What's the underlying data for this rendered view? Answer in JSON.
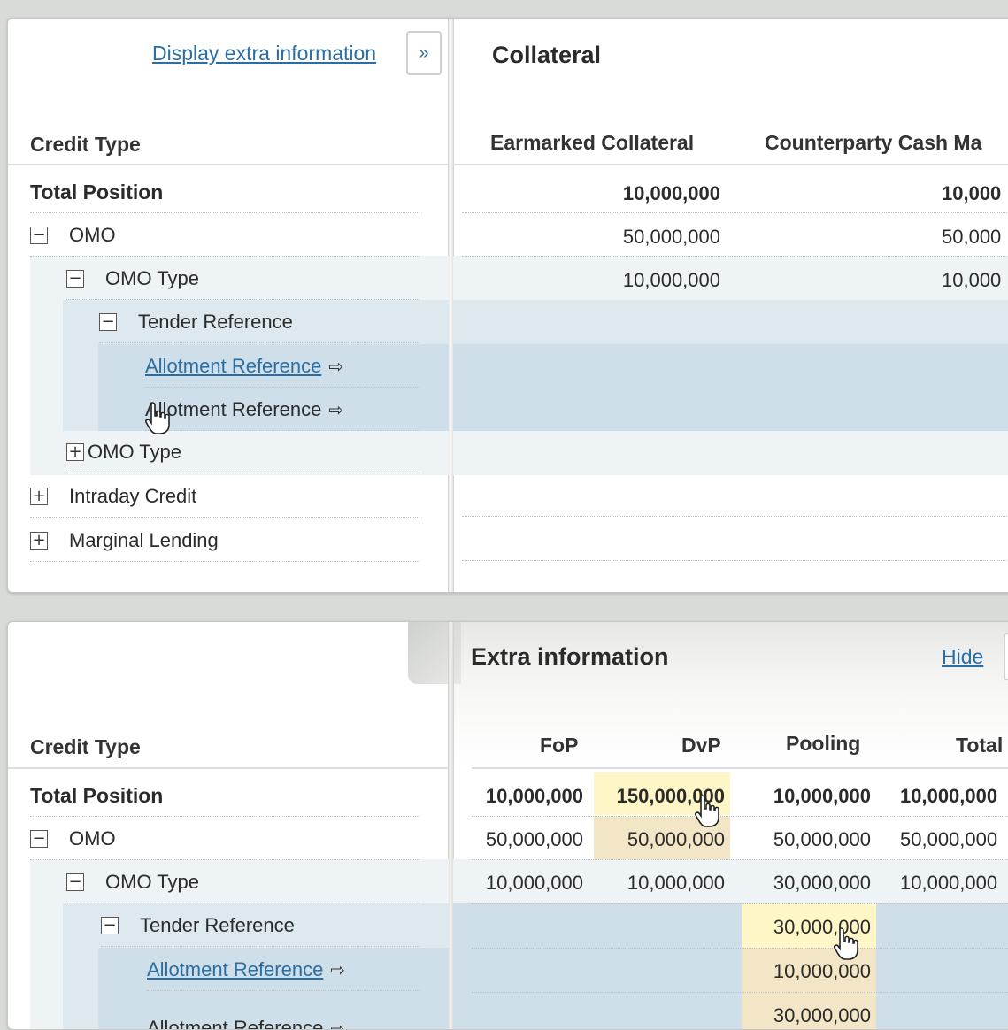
{
  "top_panel": {
    "display_extra_link": "Display extra information",
    "expand_glyph": "»",
    "section_title": "Collateral",
    "left_header": "Credit Type",
    "col_headers": [
      "Earmarked Collateral",
      "Counterparty Cash Ma"
    ],
    "rows": [
      {
        "label": "Total Position",
        "toggle": "",
        "v1": "10,000,000",
        "v2": "10,000"
      },
      {
        "label": "OMO",
        "toggle": "−",
        "v1": "50,000,000",
        "v2": "50,000"
      },
      {
        "label": "OMO Type",
        "toggle": "−",
        "v1": "10,000,000",
        "v2": "10,000"
      },
      {
        "label": "Tender Reference",
        "toggle": "−",
        "v1": "",
        "v2": ""
      },
      {
        "label": "Allotment Reference",
        "toggle": "",
        "v1": "",
        "v2": ""
      },
      {
        "label": "Allotment Reference",
        "toggle": "",
        "v1": "",
        "v2": ""
      },
      {
        "label": "OMO Type",
        "toggle": "+",
        "v1": "",
        "v2": ""
      },
      {
        "label": "Intraday Credit",
        "toggle": "+",
        "v1": "",
        "v2": ""
      },
      {
        "label": "Marginal Lending",
        "toggle": "+",
        "v1": "",
        "v2": ""
      }
    ]
  },
  "bottom_panel": {
    "section_title": "Extra information",
    "hide_link": "Hide",
    "left_header": "Credit Type",
    "col_headers": [
      "FoP",
      "DvP",
      "Pooling",
      "Total"
    ],
    "rows": [
      {
        "label": "Total Position",
        "toggle": "",
        "fop": "10,000,000",
        "dvp": "150,000,000",
        "pooling": "10,000,000",
        "total": "10,000,000"
      },
      {
        "label": "OMO",
        "toggle": "−",
        "fop": "50,000,000",
        "dvp": "50,000,000",
        "pooling": "50,000,000",
        "total": "50,000,000"
      },
      {
        "label": "OMO Type",
        "toggle": "−",
        "fop": "10,000,000",
        "dvp": "10,000,000",
        "pooling": "30,000,000",
        "total": "10,000,000"
      },
      {
        "label": "Tender Reference",
        "toggle": "−",
        "fop": "",
        "dvp": "",
        "pooling": "30,000,000",
        "total": ""
      },
      {
        "label": "Allotment Reference",
        "toggle": "",
        "fop": "",
        "dvp": "",
        "pooling": "10,000,000",
        "total": ""
      },
      {
        "label": "Allotment Reference",
        "toggle": "",
        "fop": "",
        "dvp": "",
        "pooling": "30,000,000",
        "total": ""
      }
    ]
  },
  "icons": {
    "external": "⇨",
    "cursor": "hand-pointer"
  },
  "colors": {
    "link": "#2a6ea3",
    "band_light": "#eef3f6",
    "band_mid": "#dde8ef",
    "band_dark": "#cfdfe9",
    "highlight": "#fff6c8",
    "highlight_soft": "#f3e6c6"
  }
}
